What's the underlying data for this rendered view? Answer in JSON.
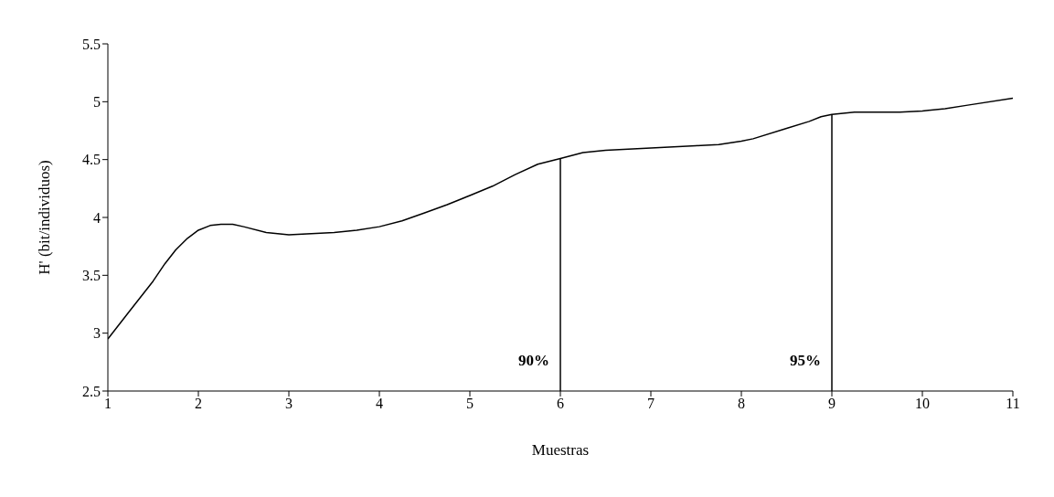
{
  "chart_data": {
    "type": "line",
    "xlabel": "Muestras",
    "ylabel": "H' (bit/individuos)",
    "x": [
      1,
      1.25,
      1.5,
      1.63,
      1.75,
      1.88,
      2,
      2.13,
      2.25,
      2.38,
      2.5,
      2.75,
      3,
      3.5,
      3.75,
      4,
      4.25,
      4.5,
      4.75,
      5,
      5.25,
      5.5,
      5.75,
      6,
      6.25,
      6.5,
      7,
      7.5,
      7.75,
      8,
      8.13,
      8.5,
      8.75,
      8.88,
      9,
      9.25,
      9.75,
      10,
      10.25,
      10.5,
      11
    ],
    "series": [
      {
        "color": "#000000",
        "values": [
          2.95,
          3.2,
          3.45,
          3.6,
          3.72,
          3.82,
          3.89,
          3.93,
          3.94,
          3.94,
          3.92,
          3.87,
          3.85,
          3.87,
          3.89,
          3.92,
          3.97,
          4.04,
          4.11,
          4.19,
          4.27,
          4.37,
          4.46,
          4.51,
          4.56,
          4.58,
          4.6,
          4.62,
          4.63,
          4.66,
          4.68,
          4.77,
          4.83,
          4.87,
          4.89,
          4.91,
          4.91,
          4.92,
          4.94,
          4.97,
          5.03
        ]
      }
    ],
    "xlim": [
      1,
      11
    ],
    "xticks": [
      1,
      2,
      3,
      4,
      5,
      6,
      7,
      8,
      9,
      10,
      11
    ],
    "ylim": [
      2.5,
      5.5
    ],
    "yticks": [
      2.5,
      3,
      3.5,
      4,
      4.5,
      5,
      5.5
    ],
    "ref_lines": [
      {
        "axis": "x",
        "value": 6,
        "color": "#000000"
      },
      {
        "axis": "x",
        "value": 9,
        "color": "#000000"
      }
    ],
    "annotations": [
      {
        "text": "90%",
        "x": 6,
        "y": 2.77
      },
      {
        "text": "95%",
        "x": 9,
        "y": 2.77
      }
    ],
    "grid": false,
    "legend": false,
    "marker": "none",
    "line_style": "solid"
  }
}
